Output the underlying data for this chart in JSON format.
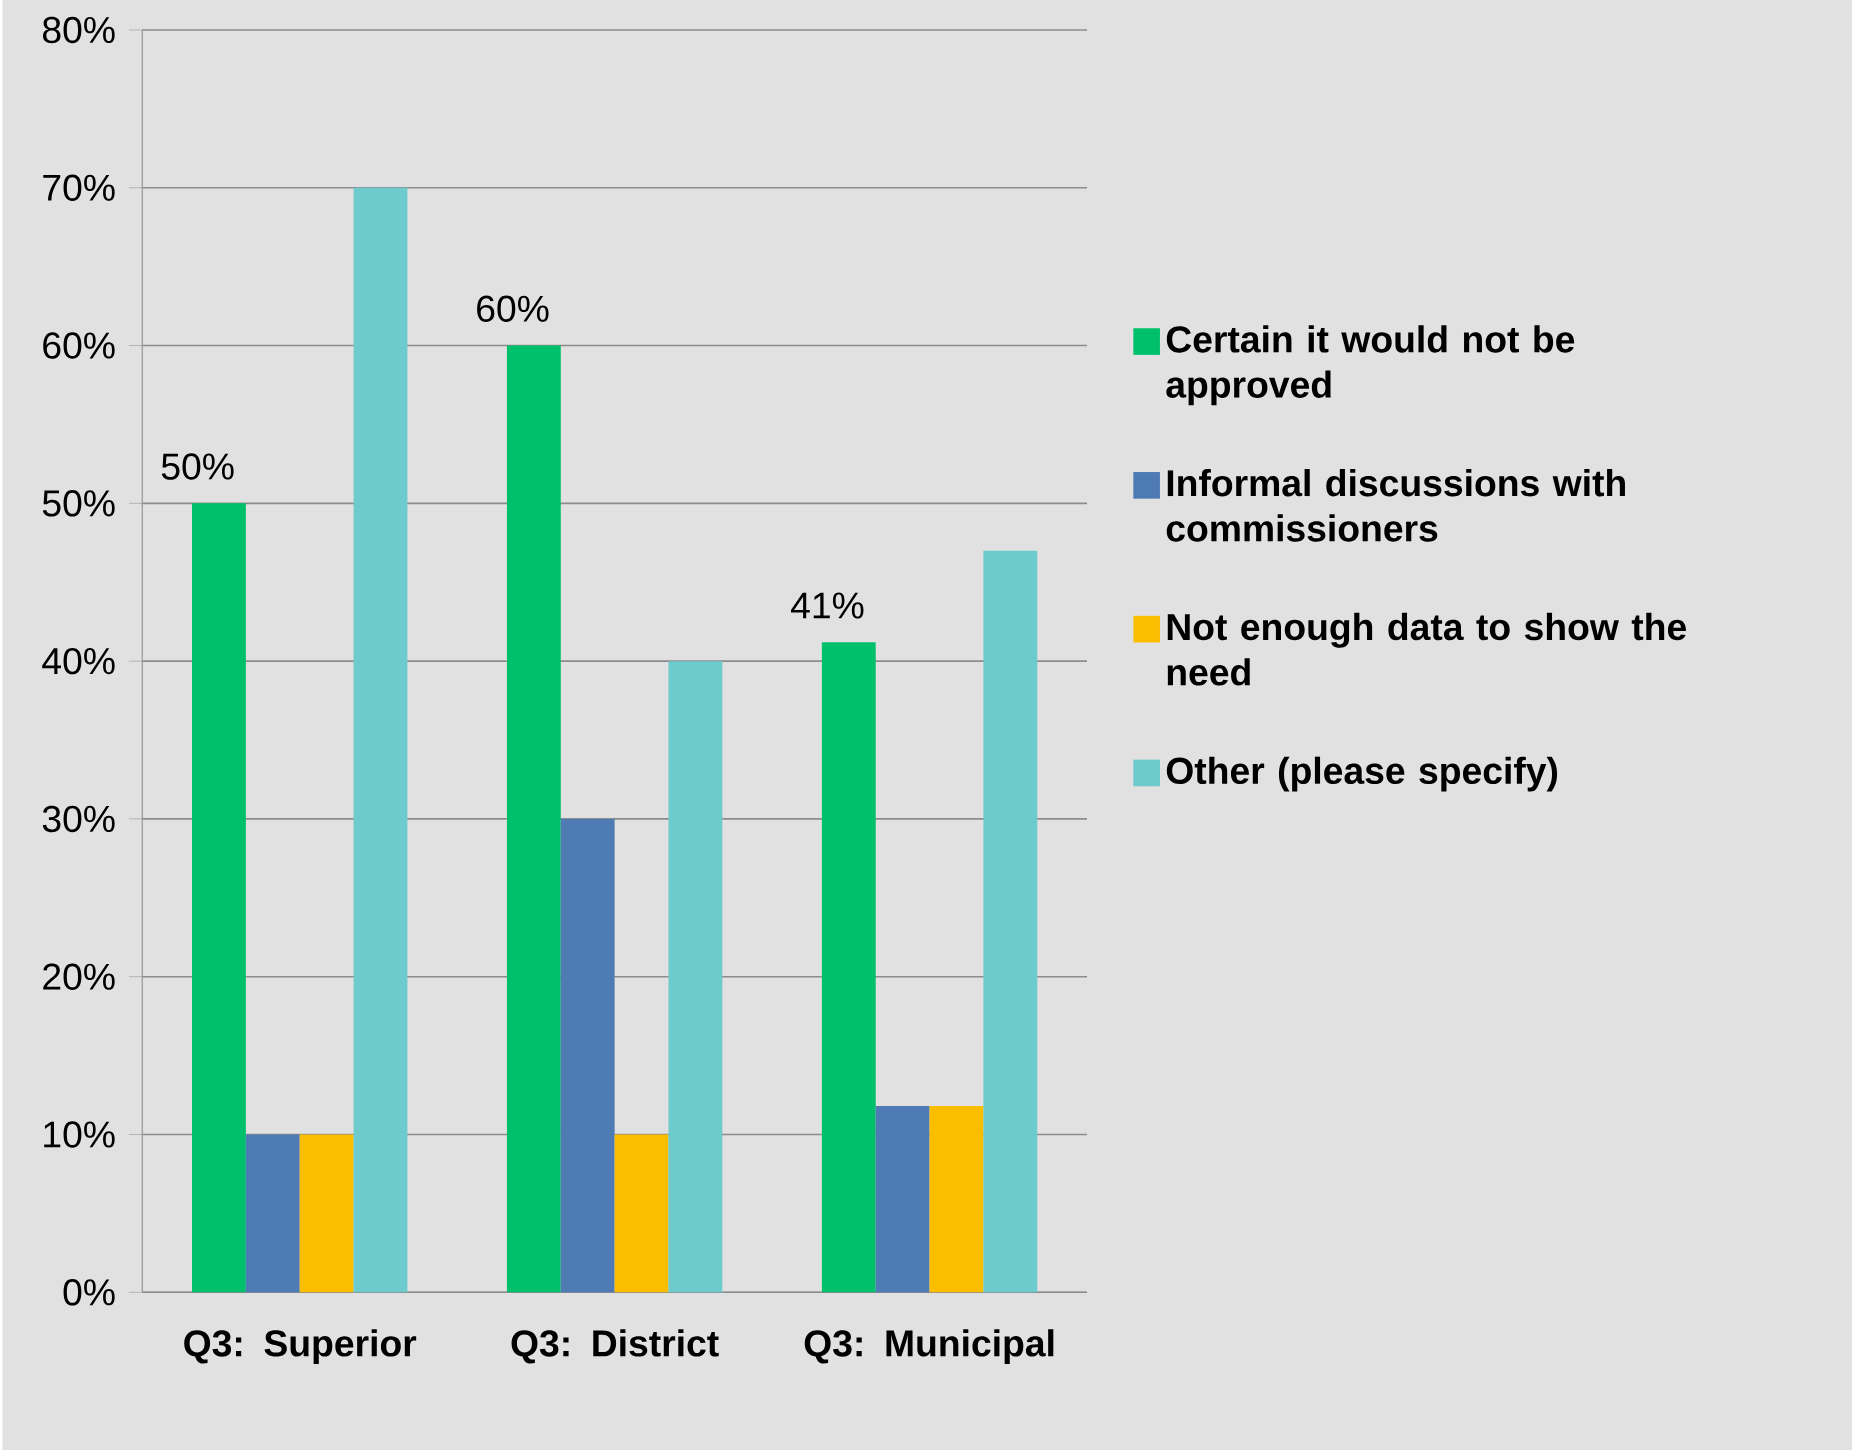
{
  "chart_data": {
    "type": "bar",
    "categories": [
      "Q3: Superior",
      "Q3: District",
      "Q3: Municipal"
    ],
    "series": [
      {
        "name": "Certain it would not be approved",
        "color": "#00c06b",
        "values": [
          50,
          60,
          41.2
        ],
        "value_labels": [
          "50%",
          "60%",
          "41%"
        ]
      },
      {
        "name": "Informal discussions with commissioners",
        "color": "#4f7bb5",
        "values": [
          10,
          30,
          11.8
        ]
      },
      {
        "name": "Not enough data to show the need",
        "color": "#fbbd00",
        "values": [
          10,
          10,
          11.8
        ]
      },
      {
        "name": "Other (please specify)",
        "color": "#6dcacd",
        "values": [
          70,
          40,
          47
        ]
      }
    ],
    "ylim": [
      0,
      80
    ],
    "yticks": [
      {
        "value": 0,
        "label": "0%"
      },
      {
        "value": 10,
        "label": "10%"
      },
      {
        "value": 20,
        "label": "20%"
      },
      {
        "value": 30,
        "label": "30%"
      },
      {
        "value": 40,
        "label": "40%"
      },
      {
        "value": 50,
        "label": "50%"
      },
      {
        "value": 60,
        "label": "60%"
      },
      {
        "value": 70,
        "label": "70%"
      },
      {
        "value": 80,
        "label": "80%"
      }
    ],
    "grid": "y",
    "legend": "right"
  }
}
